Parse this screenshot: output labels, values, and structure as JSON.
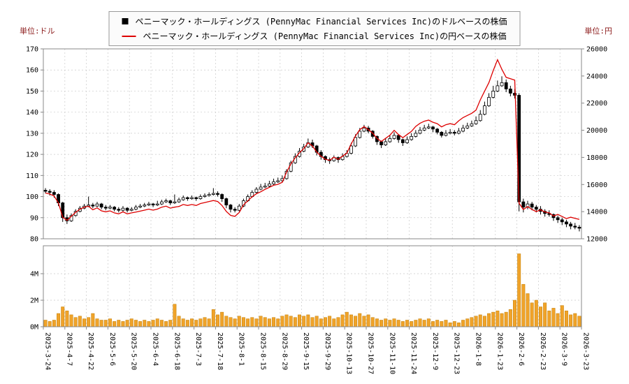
{
  "chart_data": {
    "type": "candlestick-line-volume",
    "left_axis": {
      "unit": "単位:ドル",
      "min": 80,
      "max": 170,
      "step": 10
    },
    "right_axis": {
      "unit": "単位:円",
      "min": 12000,
      "max": 26000,
      "step": 2000
    },
    "volume_axis": {
      "tick_labels": [
        "0M",
        "2M",
        "4M"
      ],
      "tick_values": [
        0,
        2,
        4
      ]
    },
    "legend": [
      {
        "marker": "square",
        "color": "#000000",
        "label": "ペニーマック・ホールディングス (PennyMac Financial Services Inc)のドルベースの株価"
      },
      {
        "marker": "line",
        "color": "#dd0000",
        "label": "ペニーマック・ホールディングス (PennyMac Financial Services Inc)の円ベースの株価"
      }
    ],
    "x_tick_labels": [
      "2025-3-24",
      "2025-4-7",
      "2025-4-22",
      "2025-5-6",
      "2025-5-20",
      "2025-6-4",
      "2025-6-18",
      "2025-7-3",
      "2025-7-18",
      "2025-8-1",
      "2025-8-15",
      "2025-8-29",
      "2025-9-15",
      "2025-9-29",
      "2025-10-13",
      "2025-10-27",
      "2025-11-10",
      "2025-11-24",
      "2025-12-9",
      "2025-12-23",
      "2026-1-8",
      "2026-1-23",
      "2026-2-6",
      "2026-2-23",
      "2026-3-9",
      "2026-3-23"
    ],
    "ohlc_usd": [
      [
        103,
        104,
        101.5,
        102.5
      ],
      [
        102.5,
        103.5,
        100.5,
        102
      ],
      [
        102,
        103,
        99.5,
        101
      ],
      [
        101,
        101.5,
        95.5,
        97
      ],
      [
        97,
        97.5,
        88,
        90
      ],
      [
        90,
        91.5,
        87,
        88.5
      ],
      [
        88.5,
        92,
        88,
        91
      ],
      [
        91,
        94,
        90.5,
        93
      ],
      [
        93,
        95.5,
        92.5,
        94.5
      ],
      [
        94.5,
        96.5,
        94,
        95.5
      ],
      [
        95.5,
        100,
        95,
        96
      ],
      [
        96,
        97,
        94.5,
        95.5
      ],
      [
        95.5,
        97.5,
        95,
        96.5
      ],
      [
        96.5,
        97,
        94,
        95
      ],
      [
        95,
        96,
        93.5,
        94.5
      ],
      [
        94.5,
        96,
        94,
        95
      ],
      [
        95,
        95.5,
        93,
        94
      ],
      [
        94,
        95,
        92.5,
        93.5
      ],
      [
        93.5,
        95.5,
        93,
        94.5
      ],
      [
        94.5,
        95,
        92.5,
        93.5
      ],
      [
        93.5,
        95,
        93,
        94
      ],
      [
        94,
        96,
        93.5,
        95
      ],
      [
        95,
        96.5,
        94.5,
        95.5
      ],
      [
        95.5,
        97,
        95,
        96
      ],
      [
        96,
        97.5,
        95.5,
        96.5
      ],
      [
        96.5,
        97,
        95,
        96
      ],
      [
        96,
        98,
        95.5,
        96.5
      ],
      [
        96.5,
        98.5,
        96,
        97.5
      ],
      [
        97.5,
        99,
        97,
        98
      ],
      [
        98,
        98.5,
        96,
        97
      ],
      [
        97,
        101,
        96.5,
        97.5
      ],
      [
        97.5,
        99.5,
        97,
        98.5
      ],
      [
        98.5,
        100.5,
        98,
        99.5
      ],
      [
        99.5,
        100,
        98,
        99
      ],
      [
        99,
        100.5,
        98.5,
        99.5
      ],
      [
        99.5,
        100,
        98,
        99
      ],
      [
        99,
        101,
        98.5,
        100
      ],
      [
        100,
        101.5,
        99.5,
        100.5
      ],
      [
        100.5,
        102,
        100,
        101
      ],
      [
        101,
        104,
        100.5,
        101.5
      ],
      [
        101.5,
        102.5,
        100,
        101
      ],
      [
        101,
        101.5,
        97.5,
        99
      ],
      [
        99,
        99.5,
        94.5,
        96
      ],
      [
        96,
        96.5,
        92.5,
        94
      ],
      [
        94,
        95,
        92.5,
        93.5
      ],
      [
        93.5,
        96.5,
        93,
        95.5
      ],
      [
        95.5,
        99,
        95,
        98
      ],
      [
        98,
        101,
        97.5,
        100
      ],
      [
        100,
        103,
        99.5,
        102
      ],
      [
        102,
        104.5,
        101.5,
        103.5
      ],
      [
        103.5,
        106,
        103,
        104.5
      ],
      [
        104.5,
        106.5,
        104,
        105
      ],
      [
        105,
        107.5,
        104.5,
        106
      ],
      [
        106,
        108.5,
        105.5,
        107
      ],
      [
        107,
        109,
        106.5,
        107.5
      ],
      [
        107.5,
        110,
        107,
        108.5
      ],
      [
        108.5,
        113,
        108,
        112
      ],
      [
        112,
        117,
        111.5,
        116
      ],
      [
        116,
        120.5,
        115.5,
        119
      ],
      [
        119,
        123,
        118.5,
        121.5
      ],
      [
        121.5,
        125,
        121,
        123.5
      ],
      [
        123.5,
        127.5,
        123,
        125.5
      ],
      [
        125.5,
        127,
        123,
        124
      ],
      [
        124,
        124.5,
        119.5,
        121
      ],
      [
        121,
        122,
        117.5,
        119
      ],
      [
        119,
        119.5,
        116,
        117.5
      ],
      [
        117.5,
        118.5,
        115.5,
        117
      ],
      [
        117,
        119.5,
        116.5,
        118.5
      ],
      [
        118.5,
        119,
        116,
        117.5
      ],
      [
        117.5,
        120.5,
        117,
        119
      ],
      [
        119,
        122,
        118.5,
        120.5
      ],
      [
        120.5,
        125.5,
        120,
        124
      ],
      [
        124,
        129.5,
        123.5,
        128
      ],
      [
        128,
        132.5,
        127.5,
        131
      ],
      [
        131,
        134,
        130.5,
        132.5
      ],
      [
        132.5,
        133.5,
        130,
        131
      ],
      [
        131,
        131.5,
        127.5,
        128.5
      ],
      [
        128.5,
        129,
        124.5,
        126
      ],
      [
        126,
        126.5,
        123,
        124.5
      ],
      [
        124.5,
        127.5,
        124,
        126
      ],
      [
        126,
        129,
        125.5,
        127.5
      ],
      [
        127.5,
        130.5,
        127,
        129
      ],
      [
        129,
        129.5,
        125.5,
        127
      ],
      [
        127,
        127.5,
        124,
        125.5
      ],
      [
        125.5,
        128.5,
        125,
        127
      ],
      [
        127,
        130,
        126.5,
        128.5
      ],
      [
        128.5,
        131.5,
        128,
        130
      ],
      [
        130,
        133,
        129.5,
        131.5
      ],
      [
        131.5,
        134,
        131,
        132.5
      ],
      [
        132.5,
        134.5,
        132,
        133
      ],
      [
        133,
        133.5,
        130.5,
        132
      ],
      [
        132,
        132.5,
        129.5,
        130.5
      ],
      [
        130.5,
        131,
        128,
        129
      ],
      [
        129,
        131.5,
        128.5,
        130
      ],
      [
        130,
        132,
        129.5,
        130.5
      ],
      [
        130.5,
        131.5,
        129,
        130
      ],
      [
        130,
        132.5,
        129.5,
        131
      ],
      [
        131,
        134,
        130.5,
        132.5
      ],
      [
        132.5,
        135,
        132,
        133.5
      ],
      [
        133.5,
        136,
        133,
        134.5
      ],
      [
        134.5,
        138,
        134,
        136
      ],
      [
        136,
        141,
        135.5,
        139
      ],
      [
        139,
        145,
        138.5,
        143
      ],
      [
        143,
        149,
        142.5,
        147
      ],
      [
        147,
        152.5,
        146.5,
        150
      ],
      [
        150,
        155,
        149.5,
        152.5
      ],
      [
        152.5,
        157,
        152,
        154
      ],
      [
        154,
        155.5,
        149.5,
        151
      ],
      [
        151,
        152.5,
        147.5,
        149
      ],
      [
        149,
        151,
        146.5,
        148
      ],
      [
        148,
        149,
        93,
        97.5
      ],
      [
        97.5,
        99,
        92.5,
        95
      ],
      [
        95,
        98,
        94,
        96.5
      ],
      [
        96.5,
        97.5,
        93.5,
        95
      ],
      [
        95,
        96,
        92.5,
        94
      ],
      [
        94,
        95.5,
        91.5,
        93
      ],
      [
        93,
        94,
        90.5,
        92
      ],
      [
        92,
        93.5,
        90.5,
        91.5
      ],
      [
        91.5,
        92,
        88.5,
        90
      ],
      [
        90,
        91,
        87.5,
        89
      ],
      [
        89,
        90,
        86.5,
        88
      ],
      [
        88,
        89,
        85.5,
        87
      ],
      [
        87,
        88,
        84.5,
        86
      ],
      [
        86,
        87.5,
        84.5,
        85.5
      ],
      [
        85.5,
        86.5,
        83.5,
        85
      ]
    ],
    "close_jpy": [
      15375,
      15300,
      15150,
      14647,
      13590,
      13364,
      13650,
      13950,
      14175,
      14325,
      14400,
      14134,
      14282,
      14060,
      13986,
      14060,
      13912,
      13838,
      13986,
      13838,
      13912,
      13965,
      14038,
      14112,
      14185,
      14112,
      14185,
      14332,
      14406,
      14259,
      14332,
      14381,
      14527,
      14454,
      14527,
      14454,
      14600,
      14673,
      14746,
      14819,
      14746,
      14454,
      14016,
      13724,
      13651,
      13943,
      14504,
      14800,
      15096,
      15318,
      15466,
      15645,
      15794,
      15943,
      16017,
      16166,
      16912,
      17516,
      17969,
      18346,
      18648,
      19076,
      18848,
      18392,
      18088,
      17860,
      17784,
      18012,
      17860,
      18088,
      18316,
      18972,
      19584,
      20043,
      20272,
      20043,
      19789,
      19404,
      19173,
      19404,
      19635,
      19995,
      19685,
      19452,
      19685,
      19917,
      20280,
      20514,
      20670,
      20748,
      20592,
      20488,
      20253,
      20410,
      20488,
      20410,
      20698,
      20935,
      21093,
      21251,
      21488,
      22240,
      22880,
      23520,
      24400,
      25200,
      24500,
      23900,
      23800,
      23700,
      14625,
      14155,
      14378,
      14155,
      14006,
      14136,
      13984,
      13908,
      13680,
      13795,
      13640,
      13485,
      13588,
      13509,
      13430
    ],
    "volume_m": [
      0.5,
      0.4,
      0.5,
      1.0,
      1.5,
      1.2,
      0.9,
      0.7,
      0.8,
      0.6,
      0.7,
      1.0,
      0.6,
      0.5,
      0.5,
      0.6,
      0.4,
      0.5,
      0.4,
      0.5,
      0.6,
      0.5,
      0.4,
      0.5,
      0.4,
      0.5,
      0.6,
      0.5,
      0.4,
      0.5,
      1.7,
      0.8,
      0.6,
      0.5,
      0.6,
      0.5,
      0.6,
      0.7,
      0.6,
      1.3,
      0.9,
      1.1,
      0.8,
      0.7,
      0.6,
      0.8,
      0.7,
      0.6,
      0.7,
      0.6,
      0.8,
      0.7,
      0.6,
      0.7,
      0.6,
      0.8,
      0.9,
      0.8,
      0.7,
      0.9,
      0.8,
      0.9,
      0.7,
      0.8,
      0.6,
      0.7,
      0.8,
      0.6,
      0.7,
      0.9,
      1.1,
      0.9,
      0.8,
      1.0,
      0.8,
      0.9,
      0.7,
      0.6,
      0.5,
      0.6,
      0.5,
      0.6,
      0.5,
      0.4,
      0.5,
      0.4,
      0.5,
      0.6,
      0.5,
      0.6,
      0.4,
      0.5,
      0.4,
      0.5,
      0.3,
      0.4,
      0.3,
      0.5,
      0.6,
      0.7,
      0.8,
      0.9,
      0.8,
      1.0,
      1.1,
      1.2,
      1.0,
      1.1,
      1.3,
      2.0,
      5.5,
      3.2,
      2.5,
      1.8,
      2.0,
      1.5,
      1.8,
      1.2,
      1.4,
      1.0,
      1.6,
      1.2,
      0.9,
      1.0,
      0.8
    ],
    "colors": {
      "candle": "#000000",
      "candle_up_fill": "#ffffff",
      "line": "#dd0000",
      "volume": "#f0a32a",
      "volume_edge": "#c27d00",
      "grid": "#c9c9c9",
      "border": "#888888",
      "unit_label": "#8b1a1a",
      "tick_text": "#000000"
    }
  }
}
